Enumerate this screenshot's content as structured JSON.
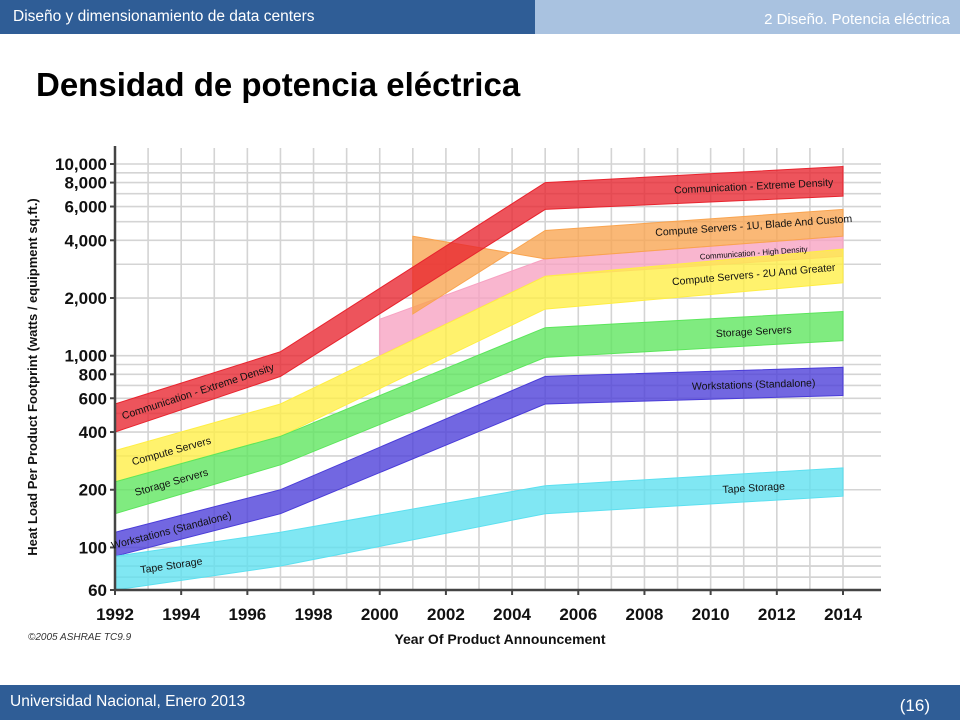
{
  "header": {
    "left_title": "Diseño y dimensionamiento de data centers",
    "right_title": "2 Diseño. Potencia eléctrica"
  },
  "slide": {
    "title": "Densidad de potencia eléctrica"
  },
  "footer": {
    "left_text": "Universidad Nacional, Enero 2013",
    "page": "(16)"
  },
  "colors": {
    "header_dark": "#2f5d96",
    "header_light": "#a9c2e0"
  },
  "chart_data": {
    "type": "area",
    "xlabel": "Year Of Product Announcement",
    "ylabel": "Heat Load Per Product Footprint (watts / equipment sq.ft.)",
    "credit": "©2005 ASHRAE TC9.9",
    "x_ticks": [
      1992,
      1994,
      1996,
      1998,
      2000,
      2002,
      2004,
      2006,
      2008,
      2010,
      2012,
      2014
    ],
    "y_ticks": [
      60,
      100,
      200,
      400,
      600,
      800,
      1000,
      2000,
      4000,
      6000,
      8000,
      10000
    ],
    "y_tick_labels": [
      "60",
      "100",
      "200",
      "400",
      "600",
      "800",
      "1,000",
      "2,000",
      "4,000",
      "6,000",
      "8,000",
      "10,000"
    ],
    "xlim": [
      1992,
      2014
    ],
    "ylim": [
      60,
      10000
    ],
    "y_scale": "log",
    "grid": true,
    "series": [
      {
        "name": "Tape Storage",
        "label_left": "Tape Storage",
        "label_right": "Tape Storage",
        "color": "#5ce0f0",
        "x": [
          1992,
          1997,
          2005,
          2014
        ],
        "upper": [
          90,
          120,
          210,
          260
        ],
        "lower": [
          60,
          80,
          150,
          185
        ]
      },
      {
        "name": "Workstations (Standalone)",
        "label_left": "Workstations (Standalone)",
        "label_right": "Workstations (Standalone)",
        "color": "#4a3cd8",
        "x": [
          1992,
          1997,
          2005,
          2014
        ],
        "upper": [
          120,
          200,
          780,
          870
        ],
        "lower": [
          90,
          150,
          560,
          620
        ]
      },
      {
        "name": "Storage Servers",
        "label_left": "Storage Servers",
        "label_right": "Storage Servers",
        "color": "#5ce65c",
        "x": [
          1992,
          1997,
          2005,
          2014
        ],
        "upper": [
          220,
          380,
          1400,
          1700
        ],
        "lower": [
          150,
          270,
          980,
          1200
        ]
      },
      {
        "name": "Compute Servers - 2U And Greater",
        "label_left": "Compute Servers",
        "label_right": "Compute Servers - 2U And Greater",
        "color": "#ffee44",
        "x": [
          1992,
          1997,
          2005,
          2014
        ],
        "upper": [
          320,
          560,
          2600,
          3600
        ],
        "lower": [
          220,
          380,
          1750,
          2400
        ]
      },
      {
        "name": "Communication - High Density",
        "label_right": "Communication - High Density",
        "color": "#f7a2c2",
        "x": [
          2000,
          2005,
          2014
        ],
        "upper": [
          1550,
          3200,
          4200
        ],
        "lower": [
          1000,
          2600,
          3300
        ]
      },
      {
        "name": "Compute Servers - 1U, Blade And Custom",
        "label_right": "Compute Servers - 1U, Blade And Custom",
        "color": "#f9a44f",
        "x": [
          2001,
          2005,
          2014
        ],
        "upper": [
          1650,
          4500,
          5800
        ]
      },
      {
        "name": "Communication - Extreme Density",
        "label_left": "Communication - Extreme Density",
        "label_right": "Communication - Extreme Density",
        "color": "#e8242e",
        "x": [
          1992,
          1997,
          2005,
          2014
        ],
        "upper": [
          560,
          1050,
          8000,
          9700
        ],
        "lower": [
          400,
          780,
          5800,
          6800
        ]
      }
    ]
  }
}
